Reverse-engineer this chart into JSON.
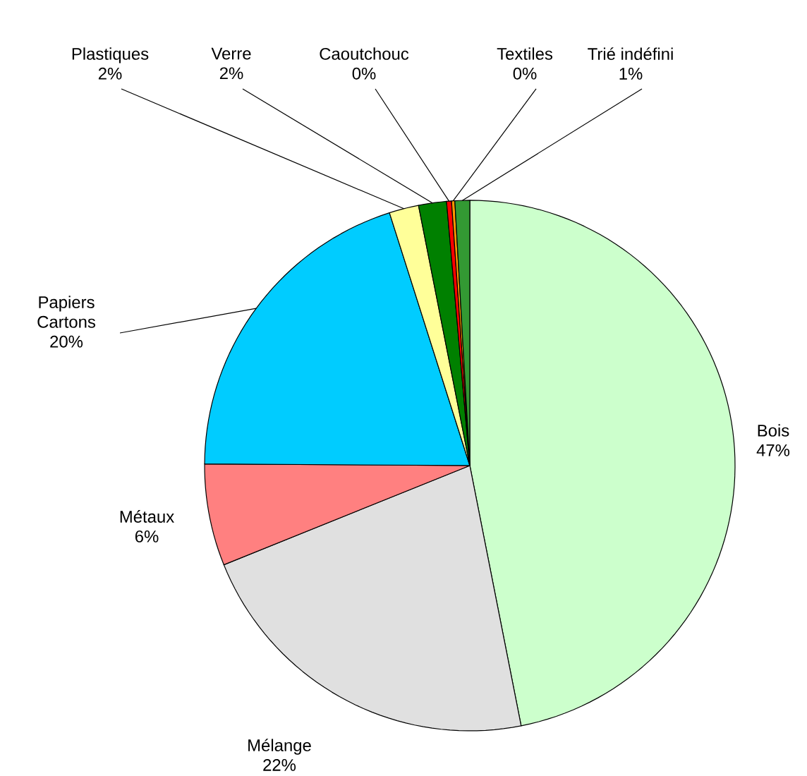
{
  "chart_data": {
    "type": "pie",
    "categories": [
      "Bois",
      "Mélange",
      "Métaux",
      "Papiers Cartons",
      "Plastiques",
      "Verre",
      "Caoutchouc",
      "Textiles",
      "Trié indéfini"
    ],
    "values": [
      46.9,
      22,
      6.2,
      20,
      1.8,
      1.7,
      0.3,
      0.2,
      0.9
    ],
    "value_labels": [
      "47%",
      "22%",
      "6%",
      "20%",
      "2%",
      "2%",
      "0%",
      "0%",
      "1%"
    ],
    "colors": [
      "#ccffcc",
      "#e0e0e0",
      "#ff8080",
      "#00ccff",
      "#ffff99",
      "#008000",
      "#ff0000",
      "#ff9900",
      "#339933"
    ],
    "legend": false
  }
}
